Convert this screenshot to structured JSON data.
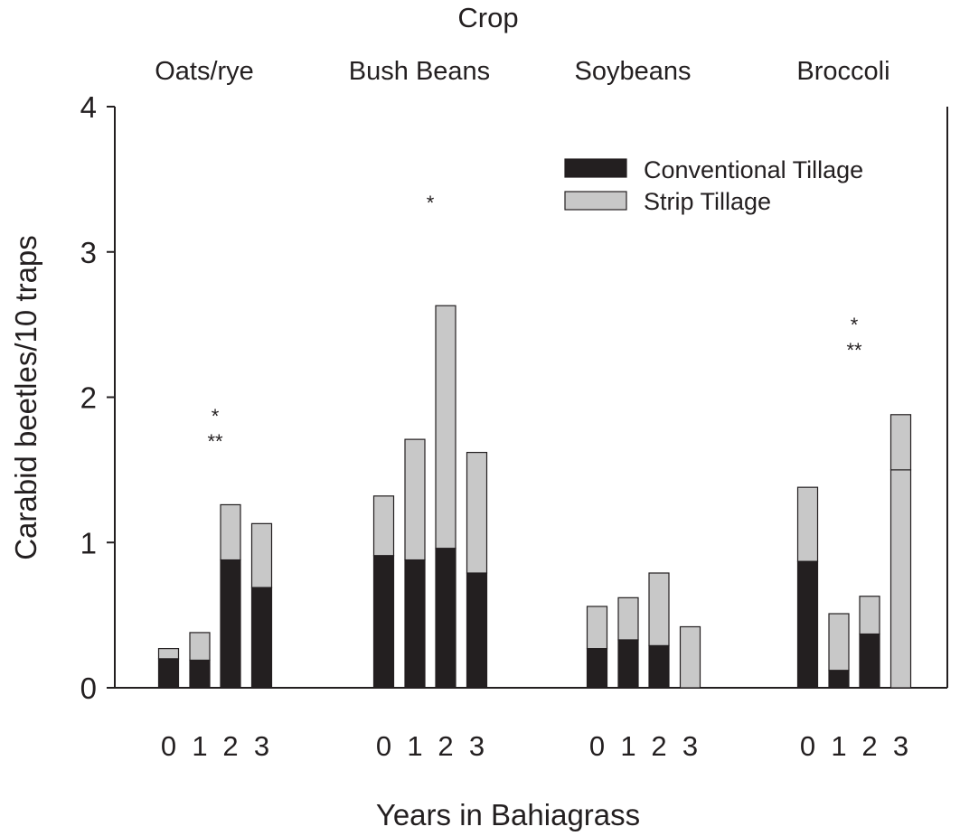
{
  "chart_data": {
    "type": "bar",
    "stacked": true,
    "title": "Crop",
    "xlabel": "Years in Bahiagrass",
    "ylabel": "Carabid beetles/10 traps",
    "ylim": [
      0,
      4
    ],
    "yticks": [
      "0",
      "1",
      "2",
      "3",
      "4"
    ],
    "grid": false,
    "legend_position": "top-right",
    "colors": {
      "conventional": "#231f20",
      "strip": "#c8c8c8",
      "axis": "#231f20"
    },
    "series": [
      {
        "name": "Conventional Tillage",
        "key": "conventional"
      },
      {
        "name": "Strip Tillage",
        "key": "strip"
      }
    ],
    "groups": [
      {
        "crop": "Oats/rye",
        "significance": [
          "*",
          "**"
        ],
        "bars": [
          {
            "year": "0",
            "conventional": 0.2,
            "strip": 0.07
          },
          {
            "year": "1",
            "conventional": 0.19,
            "strip": 0.19
          },
          {
            "year": "2",
            "conventional": 0.88,
            "strip": 0.38
          },
          {
            "year": "3",
            "conventional": 0.69,
            "strip": 0.44
          }
        ]
      },
      {
        "crop": "Bush Beans",
        "significance": [
          "*"
        ],
        "bars": [
          {
            "year": "0",
            "conventional": 0.91,
            "strip": 0.41
          },
          {
            "year": "1",
            "conventional": 0.88,
            "strip": 0.83
          },
          {
            "year": "2",
            "conventional": 0.96,
            "strip": 1.67
          },
          {
            "year": "3",
            "conventional": 0.79,
            "strip": 0.83
          }
        ]
      },
      {
        "crop": "Soybeans",
        "significance": [],
        "bars": [
          {
            "year": "0",
            "conventional": 0.27,
            "strip": 0.29
          },
          {
            "year": "1",
            "conventional": 0.33,
            "strip": 0.29
          },
          {
            "year": "2",
            "conventional": 0.29,
            "strip": 0.5
          },
          {
            "year": "3",
            "conventional": 0.0,
            "strip": 0.42
          }
        ]
      },
      {
        "crop": "Broccoli",
        "significance": [
          "*",
          "**"
        ],
        "bars": [
          {
            "year": "0",
            "conventional": 0.87,
            "strip": 0.51
          },
          {
            "year": "1",
            "conventional": 0.12,
            "strip": 0.39
          },
          {
            "year": "2",
            "conventional": 0.37,
            "strip": 0.26
          },
          {
            "year": "3",
            "conventional": 0.0,
            "strip": 1.5,
            "strip_top": 0.38
          }
        ]
      }
    ]
  }
}
